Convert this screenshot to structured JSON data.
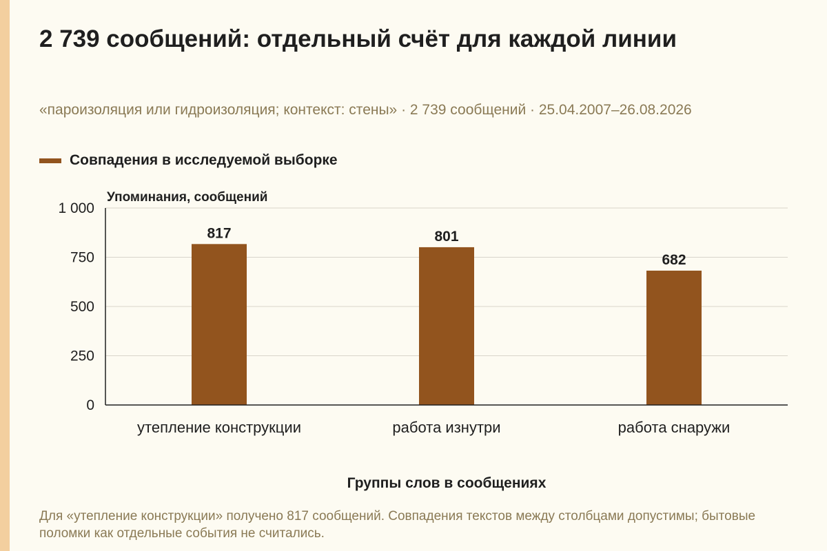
{
  "header": {
    "title": "2 739 сообщений: отдельный счёт для каждой линии",
    "subtitle": "«пароизоляция или гидроизоляция; контекст: стены» · 2 739 сообщений · 25.04.2007–26.08.2026"
  },
  "legend": {
    "label": "Совпадения в исследуемой выборке",
    "color": "#92541e"
  },
  "chart_data": {
    "type": "bar",
    "categories": [
      "утепление конструкции",
      "работа изнутри",
      "работа снаружи"
    ],
    "series": [
      {
        "name": "Совпадения в исследуемой выборке",
        "values": [
          817,
          801,
          682
        ],
        "color": "#92541e"
      }
    ],
    "ylabel": "Упоминания, сообщений",
    "xlabel": "Группы слов в сообщениях",
    "ylim": [
      0,
      1000
    ],
    "yticks": [
      0,
      250,
      500,
      750,
      1000
    ],
    "ytick_labels": [
      "0",
      "250",
      "500",
      "750",
      "1 000"
    ],
    "grid": true,
    "legend_position": "top-left"
  },
  "footnote": "Для «утепление конструкции» получено 817 сообщений. Совпадения текстов между столбцами допустимы; бытовые поломки как отдельные события не считались."
}
